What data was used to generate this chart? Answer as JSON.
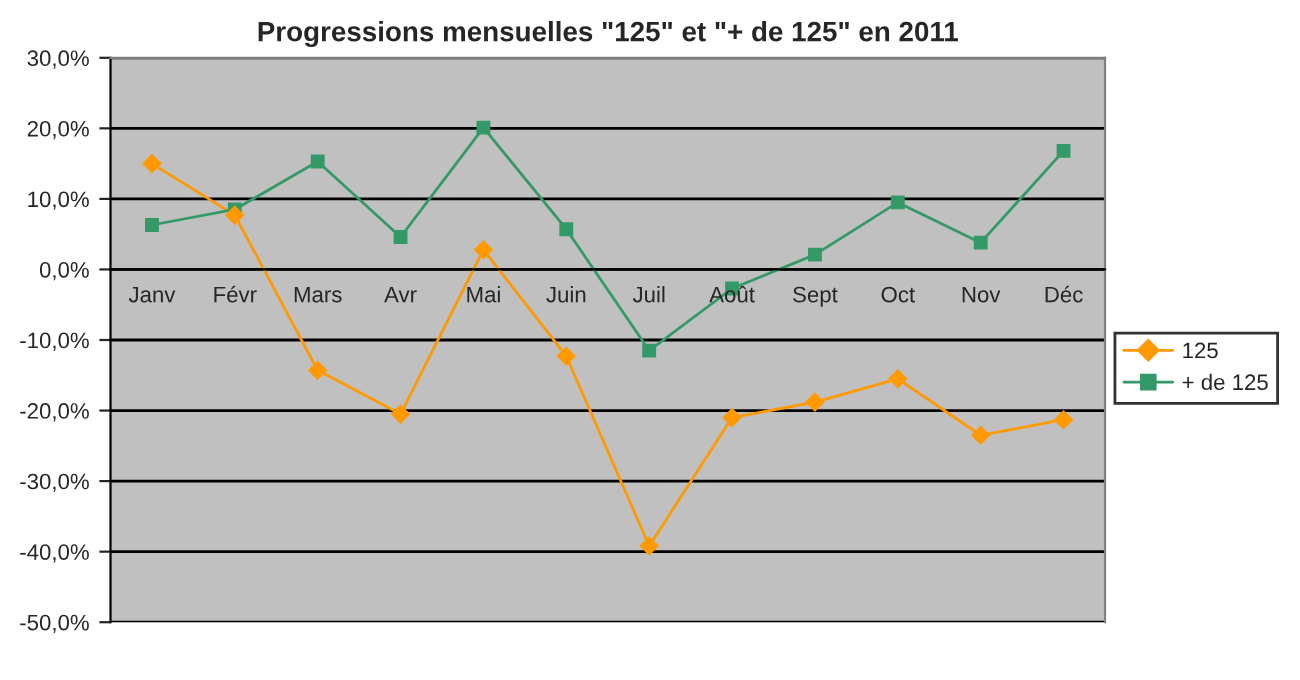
{
  "chart_data": {
    "type": "line",
    "title": "Progressions mensuelles \"125\" et \"+ de 125\" en 2011",
    "categories": [
      "Janv",
      "Févr",
      "Mars",
      "Avr",
      "Mai",
      "Juin",
      "Juil",
      "Août",
      "Sept",
      "Oct",
      "Nov",
      "Déc"
    ],
    "series": [
      {
        "name": "125",
        "color": "#ff9900",
        "marker": "diamond",
        "values": [
          15.0,
          7.7,
          -14.3,
          -20.5,
          2.8,
          -12.3,
          -39.2,
          -21.0,
          -18.8,
          -15.5,
          -23.5,
          -21.3
        ]
      },
      {
        "name": "+ de 125",
        "color": "#339966",
        "marker": "square",
        "values": [
          6.3,
          8.5,
          15.3,
          4.6,
          20.1,
          5.7,
          -11.5,
          -2.7,
          2.1,
          9.5,
          3.8,
          16.8
        ]
      }
    ],
    "ylim": [
      -50,
      30
    ],
    "yticks": [
      {
        "value": -50,
        "label": "-50,0%"
      },
      {
        "value": -40,
        "label": "-40,0%"
      },
      {
        "value": -30,
        "label": "-30,0%"
      },
      {
        "value": -20,
        "label": "-20,0%"
      },
      {
        "value": -10,
        "label": "-10,0%"
      },
      {
        "value": 0,
        "label": "0,0%"
      },
      {
        "value": 10,
        "label": "10,0%"
      },
      {
        "value": 20,
        "label": "20,0%"
      },
      {
        "value": 30,
        "label": "30,0%"
      }
    ],
    "grid": "y",
    "legend": "right",
    "line_style": "solid"
  }
}
